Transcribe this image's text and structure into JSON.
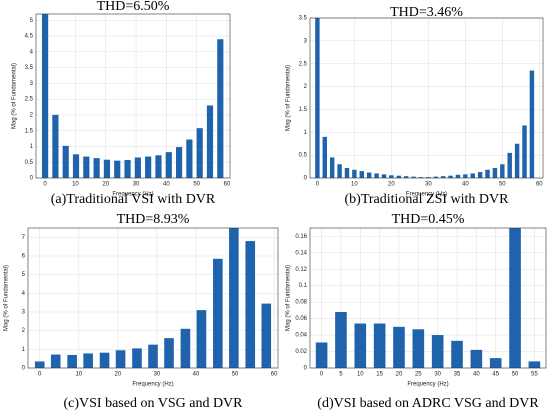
{
  "chart_data": [
    {
      "type": "bar",
      "title": "THD=6.50%",
      "caption": "(a)Traditional VSI with DVR",
      "xlabel": "Frequency (Hz)",
      "ylabel": "Mag (% of Fundamental)",
      "x": [
        0,
        3.4,
        6.8,
        10.2,
        13.6,
        17,
        20.4,
        23.8,
        27.2,
        30.6,
        34,
        37.4,
        40.8,
        44.2,
        47.6,
        51,
        54.4,
        57.8
      ],
      "values": [
        5.2,
        2.0,
        1.02,
        0.75,
        0.68,
        0.63,
        0.58,
        0.55,
        0.57,
        0.65,
        0.68,
        0.72,
        0.82,
        0.98,
        1.22,
        1.58,
        2.3,
        4.4
      ],
      "color": "#1f63ad",
      "xlim": [
        -3,
        61
      ],
      "ylim": [
        0,
        5.2
      ],
      "xticks": [
        0,
        10,
        20,
        30,
        40,
        50,
        60
      ],
      "yticks": [
        0,
        0.5,
        1,
        1.5,
        2,
        2.5,
        3,
        3.5,
        4,
        4.5,
        5
      ],
      "grid": true
    },
    {
      "type": "bar",
      "title": "THD=3.46%",
      "caption": "(b)Traditional ZSI with DVR",
      "xlabel": "Frequency (Hz)",
      "ylabel": "Mag (% of Fundamental)",
      "x": [
        0,
        2,
        4,
        6,
        8,
        10,
        12,
        14,
        16,
        18,
        20,
        22,
        24,
        26,
        28,
        30,
        32,
        34,
        36,
        38,
        40,
        42,
        44,
        46,
        48,
        50,
        52,
        54,
        56,
        58
      ],
      "values": [
        3.5,
        0.9,
        0.45,
        0.3,
        0.22,
        0.18,
        0.15,
        0.12,
        0.1,
        0.08,
        0.06,
        0.05,
        0.04,
        0.03,
        0.02,
        0.02,
        0.03,
        0.04,
        0.05,
        0.07,
        0.08,
        0.1,
        0.13,
        0.18,
        0.22,
        0.3,
        0.55,
        0.75,
        1.15,
        2.35
      ],
      "color": "#1f63ad",
      "xlim": [
        -2,
        61
      ],
      "ylim": [
        0,
        3.5
      ],
      "xticks": [
        0,
        10,
        20,
        30,
        40,
        50,
        60
      ],
      "yticks": [
        0,
        0.5,
        1,
        1.5,
        2,
        2.5,
        3,
        3.5
      ],
      "grid": true
    },
    {
      "type": "bar",
      "title": "THD=8.93%",
      "caption": "(c)VSI based on VSG and DVR",
      "xlabel": "Frequency (Hz)",
      "ylabel": "Mag (% of Fundamental)",
      "x": [
        0,
        4.1,
        8.3,
        12.4,
        16.6,
        20.7,
        24.9,
        29,
        33.1,
        37.3,
        41.4,
        45.6,
        49.7,
        53.9,
        58
      ],
      "values": [
        0.35,
        0.72,
        0.7,
        0.78,
        0.82,
        0.95,
        1.05,
        1.25,
        1.6,
        2.1,
        3.1,
        5.85,
        7.5,
        6.8,
        3.45
      ],
      "color": "#1f63ad",
      "xlim": [
        -3,
        61
      ],
      "ylim": [
        0,
        7.5
      ],
      "xticks": [
        0,
        10,
        20,
        30,
        40,
        50,
        60
      ],
      "yticks": [
        0,
        1,
        2,
        3,
        4,
        5,
        6,
        7
      ],
      "grid": true
    },
    {
      "type": "bar",
      "title": "THD=0.45%",
      "caption": "(d)VSI based on ADRC VSG and DVR",
      "xlabel": "Frequency (Hz)",
      "ylabel": "Mag (% of Fundamental)",
      "x": [
        0,
        5,
        10,
        15,
        20,
        25,
        30,
        35,
        40,
        45,
        50,
        55
      ],
      "values": [
        0.031,
        0.068,
        0.054,
        0.054,
        0.05,
        0.047,
        0.04,
        0.033,
        0.022,
        0.012,
        0.17,
        0.008
      ],
      "color": "#1f63ad",
      "xlim": [
        -3,
        58
      ],
      "ylim": [
        0,
        0.17
      ],
      "xticks": [
        0,
        5,
        10,
        15,
        20,
        25,
        30,
        35,
        40,
        45,
        50,
        55
      ],
      "yticks": [
        0,
        0.02,
        0.04,
        0.06,
        0.08,
        0.1,
        0.12,
        0.14,
        0.16
      ],
      "grid": true
    }
  ]
}
